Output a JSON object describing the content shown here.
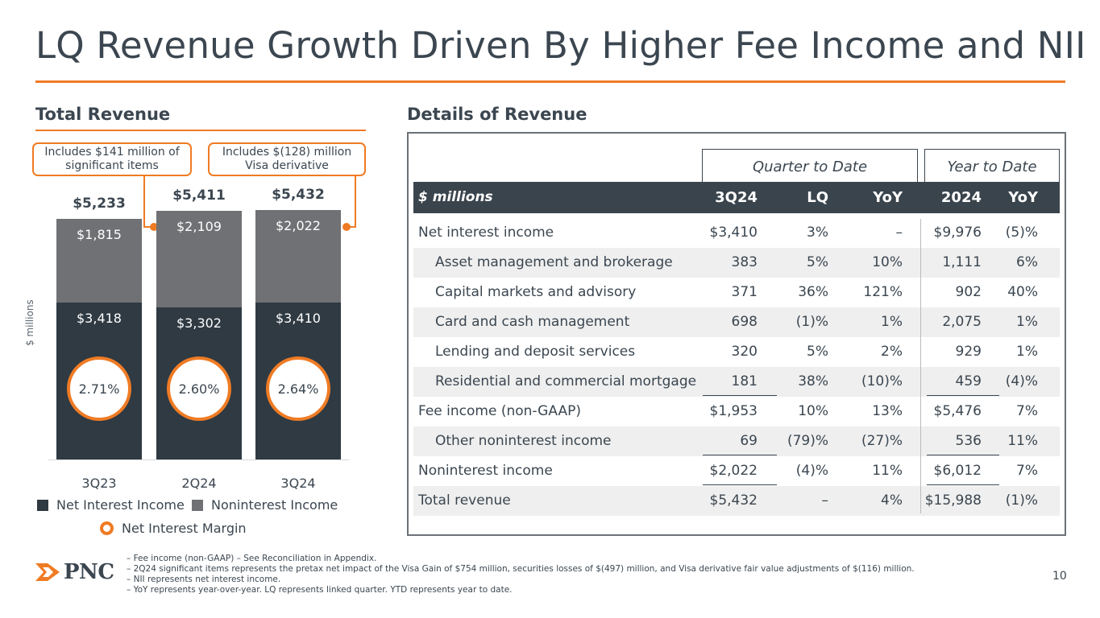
{
  "title": "LQ Revenue Growth Driven By Higher Fee Income and NII",
  "left_heading": "Total Revenue",
  "right_heading": "Details of Revenue",
  "callouts": [
    "Includes $141 million of significant items",
    "Includes $(128) million Visa derivative"
  ],
  "chart_data": {
    "type": "bar",
    "stacked": true,
    "title": "Total Revenue",
    "ylabel": "$ millions",
    "xlabel": "",
    "categories": [
      "3Q23",
      "2Q24",
      "3Q24"
    ],
    "series": [
      {
        "name": "Net Interest Income",
        "values": [
          3418,
          3302,
          3410
        ],
        "labels": [
          "$3,418",
          "$3,302",
          "$3,410"
        ],
        "color": "#2f3a43"
      },
      {
        "name": "Noninterest Income",
        "values": [
          1815,
          2109,
          2022
        ],
        "labels": [
          "$1,815",
          "$2,109",
          "$2,022"
        ],
        "color": "#707174"
      }
    ],
    "totals": [
      5233,
      5411,
      5432
    ],
    "total_labels": [
      "$5,233",
      "$5,411",
      "$5,432"
    ],
    "net_interest_margin": {
      "name": "Net Interest Margin",
      "labels": [
        "2.71%",
        "2.60%",
        "2.64%"
      ],
      "color": "#ef7b24"
    },
    "ylim": [
      0,
      5800
    ],
    "legend": [
      "Net Interest Income",
      "Noninterest Income",
      "Net Interest Margin"
    ]
  },
  "table": {
    "groups": [
      "Quarter to Date",
      "Year to Date"
    ],
    "headers": [
      "$ millions",
      "3Q24",
      "LQ",
      "YoY",
      "2024",
      "YoY"
    ],
    "rows": [
      {
        "label": "Net interest income",
        "indent": false,
        "values": [
          "$3,410",
          "3%",
          "–",
          "$9,976",
          "(5)%"
        ]
      },
      {
        "label": "Asset management and brokerage",
        "indent": true,
        "values": [
          "383",
          "5%",
          "10%",
          "1,111",
          "6%"
        ]
      },
      {
        "label": "Capital markets and advisory",
        "indent": true,
        "values": [
          "371",
          "36%",
          "121%",
          "902",
          "40%"
        ]
      },
      {
        "label": "Card and cash management",
        "indent": true,
        "values": [
          "698",
          "(1)%",
          "1%",
          "2,075",
          "1%"
        ]
      },
      {
        "label": "Lending and deposit services",
        "indent": true,
        "values": [
          "320",
          "5%",
          "2%",
          "929",
          "1%"
        ]
      },
      {
        "label": "Residential and commercial mortgage",
        "indent": true,
        "values": [
          "181",
          "38%",
          "(10)%",
          "459",
          "(4)%"
        ]
      },
      {
        "label": "Fee income (non-GAAP)",
        "indent": false,
        "values": [
          "$1,953",
          "10%",
          "13%",
          "$5,476",
          "7%"
        ]
      },
      {
        "label": "Other noninterest income",
        "indent": true,
        "values": [
          "69",
          "(79)%",
          "(27)%",
          "536",
          "11%"
        ]
      },
      {
        "label": "Noninterest income",
        "indent": false,
        "values": [
          "$2,022",
          "(4)%",
          "11%",
          "$6,012",
          "7%"
        ]
      },
      {
        "label": "Total revenue",
        "indent": false,
        "values": [
          "$5,432",
          "–",
          "4%",
          "$15,988",
          "(1)%"
        ]
      }
    ]
  },
  "logo_text": "PNC",
  "footnotes": [
    "– Fee income (non-GAAP) – See Reconciliation in Appendix.",
    "– 2Q24 significant items represents the pretax net impact of the Visa Gain of $754 million, securities losses of $(497) million, and Visa derivative fair value adjustments of $(116) million.",
    "– NII represents net interest income.",
    "– YoY represents year-over-year. LQ represents linked quarter. YTD represents year to date."
  ],
  "page_number": "10",
  "colors": {
    "accent": "#ef7b24",
    "dark": "#2f3a43",
    "gray": "#707174",
    "text": "#3b4650"
  }
}
